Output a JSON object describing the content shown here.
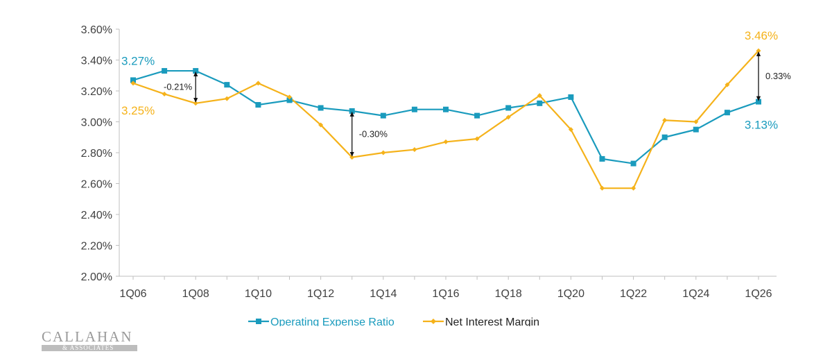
{
  "chart_data": {
    "type": "line",
    "title": "",
    "xlabel": "",
    "ylabel": "",
    "ylim": [
      0.02,
      0.036
    ],
    "y_ticks": [
      "2.00%",
      "2.20%",
      "2.40%",
      "2.60%",
      "2.80%",
      "3.00%",
      "3.20%",
      "3.40%",
      "3.60%"
    ],
    "x_ticks": [
      "1Q06",
      "1Q08",
      "1Q10",
      "1Q12",
      "1Q14",
      "1Q16",
      "1Q18",
      "1Q20",
      "1Q22",
      "1Q24",
      "1Q26"
    ],
    "x": [
      "1Q06",
      "1Q07",
      "1Q08",
      "1Q09",
      "1Q10",
      "1Q11",
      "1Q12",
      "1Q13",
      "1Q14",
      "1Q15",
      "1Q16",
      "1Q17",
      "1Q18",
      "1Q19",
      "1Q20",
      "1Q21",
      "1Q22",
      "1Q23",
      "1Q24",
      "1Q25",
      "1Q26"
    ],
    "grid": false,
    "legend_position": "bottom",
    "series": [
      {
        "name": "Operating Expense Ratio",
        "color": "#1a9bbd",
        "marker": "square",
        "values": [
          3.27,
          3.33,
          3.33,
          3.24,
          3.11,
          3.14,
          3.09,
          3.07,
          3.04,
          3.08,
          3.08,
          3.04,
          3.09,
          3.12,
          3.16,
          2.76,
          2.73,
          2.9,
          2.95,
          3.06,
          3.13
        ]
      },
      {
        "name": "Net Interest Margin",
        "color": "#f5b21a",
        "marker": "diamond",
        "values": [
          3.25,
          3.18,
          3.12,
          3.15,
          3.25,
          3.16,
          2.98,
          2.77,
          2.8,
          2.82,
          2.87,
          2.89,
          3.03,
          3.17,
          2.95,
          2.57,
          2.57,
          3.01,
          3.0,
          3.24,
          3.46
        ]
      }
    ],
    "annotations": [
      {
        "text": "3.27%",
        "series": 0,
        "index": 0,
        "position": "above"
      },
      {
        "text": "3.25%",
        "series": 1,
        "index": 0,
        "position": "below"
      },
      {
        "text": "3.46%",
        "series": 1,
        "index": 20,
        "position": "above"
      },
      {
        "text": "3.13%",
        "series": 0,
        "index": 20,
        "position": "below"
      }
    ],
    "gaps": [
      {
        "text": "-0.21%",
        "index": 2,
        "top": 3.33,
        "bottom": 3.12,
        "label_side": "left"
      },
      {
        "text": "-0.30%",
        "index": 7,
        "top": 3.07,
        "bottom": 2.77,
        "label_side": "right"
      },
      {
        "text": "0.33%",
        "index": 20,
        "top": 3.46,
        "bottom": 3.13,
        "label_side": "right"
      }
    ]
  },
  "logo": {
    "text": "CALLAHAN",
    "subtext": "& ASSOCIATES"
  }
}
